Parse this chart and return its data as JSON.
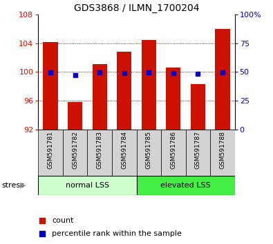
{
  "title": "GDS3868 / ILMN_1700204",
  "samples": [
    "GSM591781",
    "GSM591782",
    "GSM591783",
    "GSM591784",
    "GSM591785",
    "GSM591786",
    "GSM591787",
    "GSM591788"
  ],
  "bar_values": [
    104.2,
    95.8,
    101.1,
    102.8,
    104.5,
    100.6,
    98.3,
    106.0
  ],
  "bar_base": 92,
  "percentile_values": [
    49.5,
    47.5,
    49.5,
    49.2,
    49.5,
    49.2,
    48.5,
    49.8
  ],
  "bar_color": "#CC1100",
  "dot_color": "#0000CC",
  "ylim_left": [
    92,
    108
  ],
  "ylim_right": [
    0,
    100
  ],
  "yticks_left": [
    92,
    96,
    100,
    104,
    108
  ],
  "yticks_right": [
    0,
    25,
    50,
    75,
    100
  ],
  "ytick_labels_right": [
    "0",
    "25",
    "50",
    "75",
    "100%"
  ],
  "gridlines": [
    96,
    100,
    104
  ],
  "group1_label": "normal LSS",
  "group1_color": "#ccffcc",
  "group2_label": "elevated LSS",
  "group2_color": "#44ee44",
  "stress_label": "stress",
  "legend_count": "count",
  "legend_percentile": "percentile rank within the sample",
  "tick_color_left": "#CC1100",
  "tick_color_right": "#0000CC",
  "bar_width": 0.6,
  "label_bg": "#d3d3d3"
}
